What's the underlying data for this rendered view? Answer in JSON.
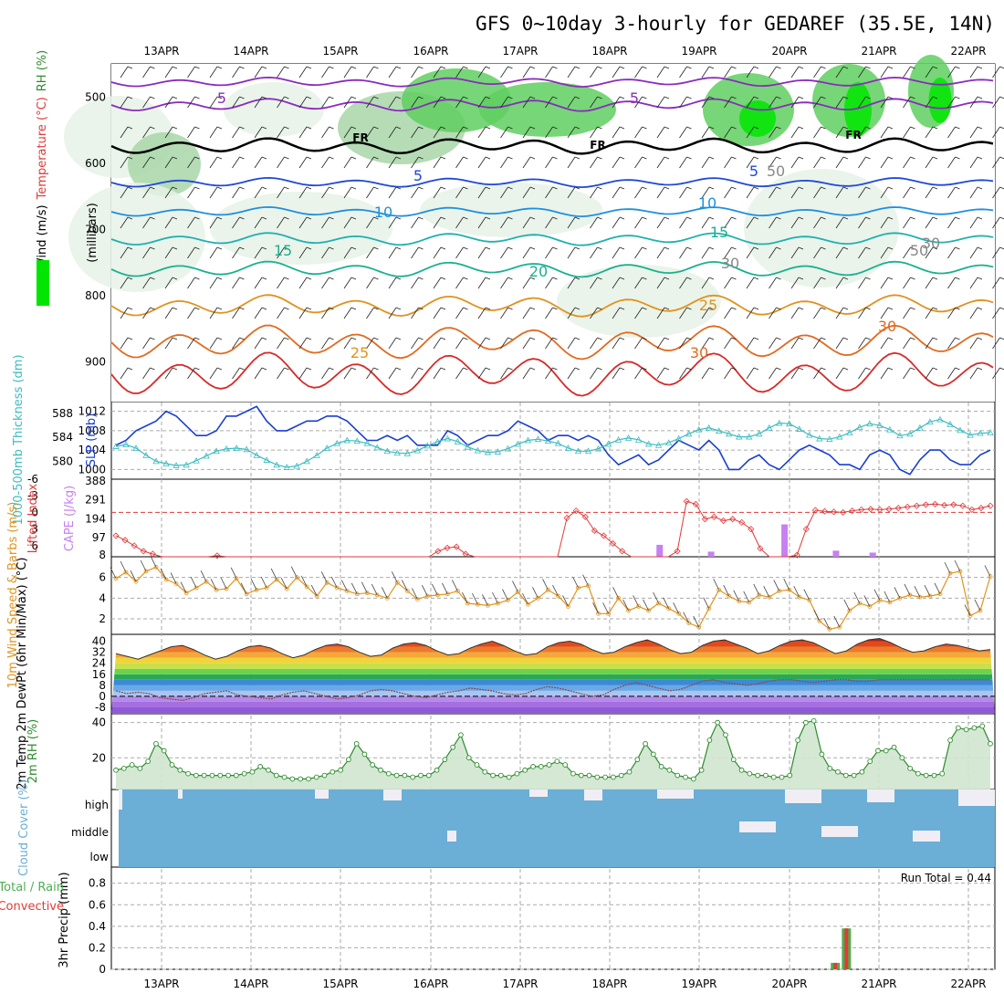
{
  "title": "GFS 0~10day 3-hourly for GEDAREF (35.5E, 14N)",
  "colors": {
    "rh_light": "#e6f2e6",
    "rh_mid": "#a8d6a8",
    "rh_high": "#5fcf5f",
    "rh_max": "#00e600",
    "slp": "#1a3fd1",
    "thickness": "#3cbcc0",
    "cape": "#c880f0",
    "lifted": "#e03a3a",
    "wind": "#e0941e",
    "rh2m_line": "#2e8b2e",
    "rh2m_fill": "#cfe6cf",
    "cloud": "#6baed6",
    "cloud_bg": "#f0eef4",
    "precip_total": "#4caf50",
    "precip_conv": "#e53935",
    "dewpt": "#8b4a4a",
    "frz": "#000000"
  },
  "chart_data": {
    "type": "line",
    "x": [
      "13APR",
      "14APR",
      "15APR",
      "16APR",
      "17APR",
      "18APR",
      "19APR",
      "20APR",
      "21APR",
      "22APR"
    ],
    "panels": {
      "upper_air": {
        "ylabel": "(millibars)",
        "legend": [
          "Wind (m/s)",
          "Temperature (°C)",
          "RH (%)"
        ],
        "yticks": [
          "500",
          "600",
          "700",
          "800",
          "900"
        ],
        "ylim": [
          960,
          450
        ],
        "contour_labels": [
          "5",
          "5",
          "FR",
          "FR",
          "FR",
          "5",
          "5",
          "10",
          "10",
          "15",
          "15",
          "20",
          "25",
          "25",
          "30",
          "30",
          "30",
          "30",
          "50",
          "50"
        ]
      },
      "slp_thickness": {
        "ylabel_slp": "SLP (mb)",
        "ylabel_thk": "1000-500mb Thickness (dm)",
        "yticks_slp": [
          "1000",
          "1004",
          "1008",
          "1012"
        ],
        "yticks_thk": [
          "580",
          "584",
          "588"
        ],
        "slp": [
          1005,
          1006,
          1008,
          1009,
          1010,
          1012,
          1011,
          1009,
          1007,
          1007,
          1008,
          1011,
          1011,
          1012,
          1013,
          1010,
          1008,
          1008,
          1009,
          1010,
          1010,
          1011,
          1011,
          1010,
          1008,
          1006,
          1006,
          1007,
          1006,
          1007,
          1005,
          1005,
          1005,
          1008,
          1007,
          1005,
          1006,
          1007,
          1007,
          1008,
          1010,
          1009,
          1008,
          1006,
          1007,
          1007,
          1006,
          1007,
          1006,
          1003,
          1001,
          1002,
          1003,
          1001,
          1002,
          1004,
          1006,
          1005,
          1004,
          1006,
          1004,
          1000,
          1000,
          1002,
          1003,
          1001,
          1000,
          1002,
          1004,
          1005,
          1004,
          1003,
          1001,
          1001,
          1000,
          1003,
          1004,
          1003,
          1000,
          999,
          1002,
          1004,
          1004,
          1002,
          1001,
          1001,
          1003,
          1004
        ],
        "thickness": [
          582.5,
          582.8,
          582.2,
          581.0,
          580.0,
          579.6,
          579.3,
          579.4,
          580.1,
          580.9,
          581.7,
          582.1,
          582.2,
          582.0,
          581.0,
          580.2,
          579.4,
          579.0,
          579.2,
          580.0,
          581.0,
          582.2,
          583.0,
          583.5,
          583.4,
          583.0,
          582.3,
          581.7,
          581.4,
          581.3,
          581.8,
          582.6,
          583.3,
          583.8,
          583.3,
          582.4,
          581.8,
          581.5,
          581.6,
          582.1,
          582.9,
          583.5,
          583.7,
          583.4,
          583.0,
          582.2,
          581.7,
          581.7,
          582.1,
          582.9,
          583.6,
          583.9,
          583.6,
          582.9,
          582.7,
          583.1,
          583.8,
          584.6,
          585.3,
          585.6,
          585.1,
          584.6,
          584.1,
          584.1,
          584.6,
          585.6,
          586.4,
          586.3,
          585.4,
          584.4,
          583.8,
          583.7,
          584.1,
          584.8,
          585.7,
          586.3,
          586.0,
          585.3,
          584.3,
          584.6,
          585.6,
          586.6,
          587.0,
          586.2,
          585.2,
          584.4,
          584.7,
          584.8
        ]
      },
      "lifted_cape": {
        "ylabel_li": "Lifted Index",
        "ylabel_cape": "CAPE (J/kg)",
        "yticks_li": [
          "-6",
          "-3",
          "0",
          "3",
          "6"
        ],
        "yticks_cape": [
          "8",
          "97",
          "194",
          "291",
          "388"
        ],
        "lifted_index": [
          4.2,
          5.0,
          6.0,
          7.0,
          7.5,
          8.0,
          8.0,
          8.0,
          8.0,
          8.0,
          8.0,
          7.8,
          8.0,
          8.0,
          8.0,
          8.0,
          8.0,
          8.0,
          8.0,
          8.0,
          8.0,
          8.0,
          8.0,
          8.0,
          8.0,
          8.0,
          8.0,
          8.0,
          8.0,
          8.0,
          8.0,
          8.0,
          8.0,
          8.0,
          8.0,
          7.0,
          6.4,
          6.2,
          7.5,
          8.0,
          8.0,
          8.0,
          8.0,
          8.0,
          8.0,
          8.0,
          8.0,
          8.0,
          8.0,
          1.0,
          -0.3,
          0.8,
          3.3,
          4.2,
          5.6,
          7.0,
          8.0,
          8.0,
          8.0,
          8.0,
          8.0,
          7.0,
          -2.0,
          -1.5,
          1.2,
          0.8,
          1.5,
          1.2,
          1.8,
          3.0,
          6.5,
          8.0,
          8.0,
          8.0,
          7.7,
          3.0,
          -0.4,
          -0.2,
          -0.1,
          0.0,
          -0.3,
          -0.5,
          -0.6,
          -0.5,
          -0.6,
          -0.8,
          -1.0,
          -1.2,
          -1.4,
          -1.5,
          -1.3,
          -1.4,
          -1.2,
          -0.5,
          -0.8,
          -1.2
        ],
        "cape": [
          0,
          0,
          0,
          0,
          0,
          0,
          0,
          0,
          0,
          0,
          0,
          0,
          0,
          0,
          0,
          0,
          0,
          0,
          0,
          0,
          0,
          0,
          0,
          0,
          0,
          0,
          0,
          0,
          0,
          0,
          0,
          0,
          0,
          0,
          0,
          0,
          0,
          0,
          0,
          0,
          0,
          0,
          0,
          0,
          0,
          0,
          0,
          0,
          0,
          0,
          0,
          0,
          0,
          0,
          0,
          0,
          0,
          0,
          0,
          0,
          0,
          0,
          0,
          0,
          0,
          0,
          0,
          0,
          0,
          0,
          0,
          0,
          0,
          0,
          60,
          0,
          0,
          0,
          0,
          0,
          0,
          25,
          0,
          0,
          0,
          0,
          0,
          0,
          0,
          0,
          0,
          165,
          0,
          0,
          0,
          0,
          0,
          0,
          30,
          0,
          0,
          0,
          0,
          20,
          0,
          0,
          0,
          0,
          0,
          0,
          0,
          0,
          0,
          0,
          0,
          0,
          0,
          0,
          0,
          0
        ]
      },
      "wind10m": {
        "ylabel": "10m Wind Speed & Barbs (m/s)",
        "yticks": [
          "2",
          "4",
          "6"
        ],
        "speed": [
          5.9,
          6.5,
          5.6,
          6.6,
          7.0,
          5.8,
          5.4,
          4.5,
          5.0,
          5.6,
          4.8,
          4.9,
          5.9,
          4.4,
          4.8,
          5.0,
          5.8,
          4.9,
          6.0,
          5.1,
          4.2,
          5.5,
          5.0,
          4.7,
          4.4,
          4.5,
          4.3,
          4.0,
          5.5,
          4.7,
          3.9,
          4.2,
          4.3,
          4.4,
          4.7,
          3.5,
          3.4,
          3.3,
          3.5,
          3.8,
          4.6,
          3.4,
          4.0,
          4.8,
          4.2,
          3.2,
          5.0,
          5.2,
          2.5,
          2.5,
          4.0,
          2.8,
          3.2,
          2.8,
          3.5,
          3.0,
          2.5,
          1.6,
          1.2,
          3.0,
          4.8,
          4.2,
          3.7,
          3.6,
          4.3,
          4.1,
          4.7,
          4.8,
          4.1,
          3.8,
          1.8,
          1.0,
          1.2,
          2.8,
          3.5,
          3.2,
          3.8,
          3.6,
          4.0,
          4.3,
          4.1,
          4.2,
          4.4,
          6.4,
          6.6,
          2.3,
          2.8,
          6.1
        ]
      },
      "temp2m": {
        "ylabel": "2m Temp 2m DewPt (6hr Min/Max) (°C)",
        "yticks": [
          "-8",
          "0",
          "8",
          "16",
          "24",
          "32",
          "40"
        ],
        "temp": [
          31,
          29,
          27,
          30,
          33,
          36,
          37,
          34,
          30,
          27,
          29,
          33,
          36,
          37,
          35,
          31,
          28,
          30,
          34,
          37,
          38,
          36,
          32,
          29,
          30,
          35,
          38,
          39,
          37,
          33,
          30,
          31,
          35,
          38,
          40,
          37,
          33,
          30,
          31,
          36,
          39,
          40,
          38,
          34,
          31,
          32,
          36,
          39,
          41,
          38,
          34,
          31,
          32,
          37,
          40,
          41,
          38,
          35,
          31,
          33,
          37,
          40,
          41,
          39,
          35,
          31,
          33,
          38,
          41,
          42,
          39,
          35,
          32,
          33,
          36,
          38,
          37,
          35,
          33,
          34
        ],
        "dewpt": [
          4,
          2,
          3,
          2,
          -1,
          -2,
          -3,
          -1,
          2,
          3,
          4,
          1,
          0,
          -1,
          -2,
          1,
          3,
          4,
          2,
          0,
          -2,
          -1,
          1,
          4,
          5,
          4,
          2,
          0,
          -1,
          1,
          3,
          4,
          6,
          5,
          4,
          2,
          1,
          2,
          5,
          7,
          6,
          4,
          2,
          0,
          1,
          5,
          8,
          10,
          8,
          6,
          4,
          5,
          8,
          11,
          12,
          10,
          9,
          8,
          9,
          11,
          12,
          12,
          11,
          10,
          11,
          12,
          12,
          11,
          11,
          12,
          12,
          12,
          12,
          12,
          12,
          12,
          12,
          12,
          12,
          12
        ]
      },
      "rh2m": {
        "ylabel": "2m RH (%)",
        "yticks": [
          "20",
          "40"
        ],
        "rh": [
          13,
          14,
          16,
          14,
          18,
          28,
          24,
          16,
          13,
          11,
          10,
          10,
          10,
          10,
          10,
          10,
          11,
          12,
          15,
          13,
          10,
          9,
          8,
          8,
          8,
          9,
          10,
          12,
          13,
          19,
          28,
          22,
          16,
          13,
          11,
          10,
          10,
          9,
          10,
          10,
          13,
          19,
          26,
          33,
          20,
          16,
          12,
          10,
          10,
          9,
          11,
          13,
          15,
          15,
          16,
          18,
          16,
          11,
          10,
          10,
          9,
          9,
          9,
          10,
          12,
          19,
          28,
          22,
          15,
          13,
          10,
          9,
          8,
          13,
          30,
          40,
          33,
          19,
          13,
          11,
          10,
          10,
          9,
          9,
          10,
          30,
          40,
          41,
          22,
          14,
          12,
          10,
          10,
          12,
          18,
          24,
          24,
          26,
          20,
          14,
          11,
          10,
          10,
          11,
          30,
          37,
          36,
          37,
          38,
          28
        ]
      },
      "cloud": {
        "ylabel": "Cloud Cover (%)",
        "levels": [
          "high",
          "middle",
          "low"
        ]
      },
      "precip": {
        "ylabel": "3hr Precip (mm)",
        "legend": [
          "Total / Rain",
          "Convective"
        ],
        "yticks": [
          "0",
          "0.2",
          "0.4",
          "0.6",
          "0.8"
        ],
        "run_total_label": "Run Total = 0.44",
        "bars": [
          {
            "x_index": 65,
            "total": 0.06,
            "conv": 0.06
          },
          {
            "x_index": 66,
            "total": 0.38,
            "conv": 0.38
          }
        ]
      }
    }
  }
}
